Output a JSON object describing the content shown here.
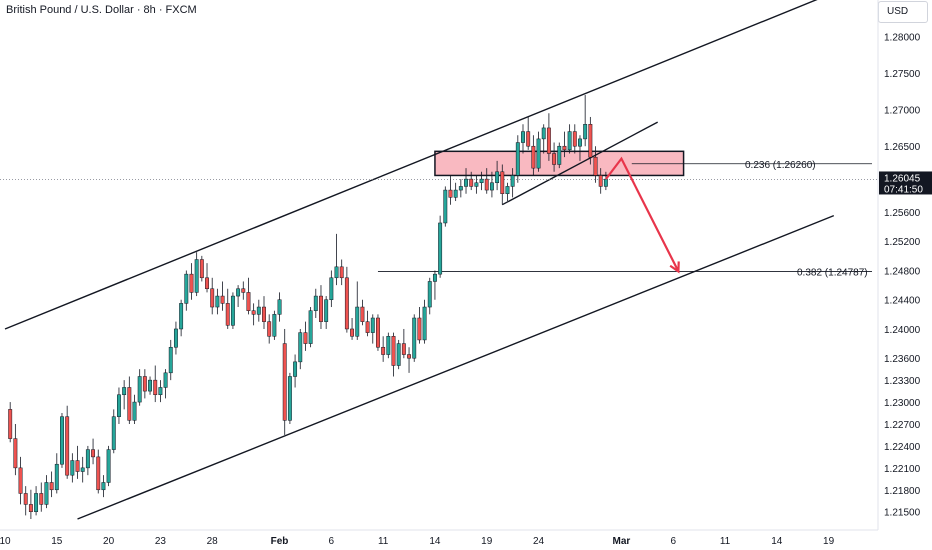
{
  "window": {
    "title": "British Pound / U.S. Dollar · 8h · FXCM"
  },
  "price_axis": {
    "currency_label": "USD"
  },
  "colors": {
    "up": "#26a69a",
    "down": "#ef5350",
    "zone_fill": "#f7a1ac",
    "arrow": "#e8354b",
    "last_price_bg": "#131722"
  },
  "last_price": {
    "value": "1.26045",
    "countdown": "07:41:50"
  },
  "chart_data": {
    "type": "candlestick",
    "title": "British Pound / U.S. Dollar · 8h · FXCM",
    "xlabel": "",
    "ylabel": "",
    "ylim": [
      1.2125,
      1.285
    ],
    "y_ticks": [
      "1.28000",
      "1.27500",
      "1.27000",
      "1.26500",
      "1.26000",
      "1.25600",
      "1.25200",
      "1.24800",
      "1.24400",
      "1.24000",
      "1.23600",
      "1.23300",
      "1.23000",
      "1.22700",
      "1.22400",
      "1.22100",
      "1.21800",
      "1.21500"
    ],
    "x_tick_labels": [
      {
        "label": "10",
        "index": 0
      },
      {
        "label": "15",
        "index": 10
      },
      {
        "label": "20",
        "index": 20
      },
      {
        "label": "23",
        "index": 30
      },
      {
        "label": "28",
        "index": 40
      },
      {
        "label": "Feb",
        "index": 53,
        "bold": true
      },
      {
        "label": "6",
        "index": 63
      },
      {
        "label": "11",
        "index": 73
      },
      {
        "label": "14",
        "index": 83
      },
      {
        "label": "19",
        "index": 93
      },
      {
        "label": "24",
        "index": 103
      },
      {
        "label": "Mar",
        "index": 119,
        "bold": true
      },
      {
        "label": "6",
        "index": 129
      },
      {
        "label": "11",
        "index": 139
      },
      {
        "label": "14",
        "index": 149
      },
      {
        "label": "19",
        "index": 159
      }
    ],
    "index_range": [
      1,
      160
    ],
    "candles": [
      [
        1.229,
        1.23,
        1.2245,
        1.225
      ],
      [
        1.225,
        1.227,
        1.22,
        1.221
      ],
      [
        1.221,
        1.2225,
        1.216,
        1.2175
      ],
      [
        1.2175,
        1.2185,
        1.2145,
        1.216
      ],
      [
        1.216,
        1.218,
        1.214,
        1.215
      ],
      [
        1.215,
        1.2185,
        1.2145,
        1.2175
      ],
      [
        1.2175,
        1.219,
        1.215,
        1.216
      ],
      [
        1.216,
        1.22,
        1.2155,
        1.219
      ],
      [
        1.219,
        1.2205,
        1.217,
        1.218
      ],
      [
        1.218,
        1.223,
        1.2175,
        1.2215
      ],
      [
        1.2215,
        1.2285,
        1.221,
        1.228
      ],
      [
        1.228,
        1.2295,
        1.2195,
        1.22
      ],
      [
        1.22,
        1.223,
        1.219,
        1.222
      ],
      [
        1.222,
        1.224,
        1.2195,
        1.2205
      ],
      [
        1.2205,
        1.2225,
        1.219,
        1.221
      ],
      [
        1.221,
        1.224,
        1.22,
        1.2235
      ],
      [
        1.2235,
        1.225,
        1.2215,
        1.2225
      ],
      [
        1.2225,
        1.2235,
        1.2175,
        1.218
      ],
      [
        1.218,
        1.22,
        1.217,
        1.219
      ],
      [
        1.219,
        1.224,
        1.2185,
        1.2235
      ],
      [
        1.2235,
        1.229,
        1.223,
        1.228
      ],
      [
        1.228,
        1.232,
        1.227,
        1.231
      ],
      [
        1.231,
        1.233,
        1.229,
        1.232
      ],
      [
        1.232,
        1.2335,
        1.227,
        1.2275
      ],
      [
        1.2275,
        1.231,
        1.227,
        1.23
      ],
      [
        1.23,
        1.2345,
        1.2295,
        1.2335
      ],
      [
        1.2335,
        1.2345,
        1.2305,
        1.2315
      ],
      [
        1.2315,
        1.2335,
        1.231,
        1.233
      ],
      [
        1.233,
        1.235,
        1.23,
        1.231
      ],
      [
        1.231,
        1.233,
        1.23,
        1.232
      ],
      [
        1.232,
        1.2345,
        1.2305,
        1.234
      ],
      [
        1.234,
        1.2385,
        1.233,
        1.2375
      ],
      [
        1.2375,
        1.241,
        1.2365,
        1.24
      ],
      [
        1.24,
        1.244,
        1.239,
        1.2435
      ],
      [
        1.2435,
        1.248,
        1.2425,
        1.2475
      ],
      [
        1.2475,
        1.249,
        1.244,
        1.245
      ],
      [
        1.245,
        1.2505,
        1.2445,
        1.2495
      ],
      [
        1.2495,
        1.25,
        1.2465,
        1.247
      ],
      [
        1.247,
        1.249,
        1.245,
        1.2455
      ],
      [
        1.2455,
        1.247,
        1.242,
        1.243
      ],
      [
        1.243,
        1.2455,
        1.242,
        1.2445
      ],
      [
        1.2445,
        1.2465,
        1.2425,
        1.2435
      ],
      [
        1.2435,
        1.2455,
        1.24,
        1.2405
      ],
      [
        1.2405,
        1.245,
        1.24,
        1.2445
      ],
      [
        1.2445,
        1.246,
        1.243,
        1.2455
      ],
      [
        1.2455,
        1.2465,
        1.244,
        1.245
      ],
      [
        1.245,
        1.247,
        1.242,
        1.2425
      ],
      [
        1.2425,
        1.2435,
        1.2405,
        1.242
      ],
      [
        1.242,
        1.244,
        1.241,
        1.243
      ],
      [
        1.243,
        1.2445,
        1.24,
        1.241
      ],
      [
        1.241,
        1.242,
        1.238,
        1.239
      ],
      [
        1.239,
        1.2425,
        1.2385,
        1.242
      ],
      [
        1.242,
        1.245,
        1.241,
        1.244
      ],
      [
        1.238,
        1.24,
        1.2255,
        1.2275
      ],
      [
        1.2275,
        1.234,
        1.227,
        1.2335
      ],
      [
        1.2335,
        1.2365,
        1.232,
        1.2355
      ],
      [
        1.2355,
        1.24,
        1.2345,
        1.2395
      ],
      [
        1.2395,
        1.241,
        1.237,
        1.238
      ],
      [
        1.238,
        1.243,
        1.2375,
        1.2425
      ],
      [
        1.2425,
        1.2455,
        1.2415,
        1.2445
      ],
      [
        1.2445,
        1.246,
        1.24,
        1.241
      ],
      [
        1.241,
        1.2445,
        1.24,
        1.244
      ],
      [
        1.244,
        1.248,
        1.243,
        1.247
      ],
      [
        1.247,
        1.253,
        1.246,
        1.2485
      ],
      [
        1.2485,
        1.2495,
        1.246,
        1.247
      ],
      [
        1.247,
        1.2485,
        1.2395,
        1.24
      ],
      [
        1.24,
        1.2415,
        1.2385,
        1.239
      ],
      [
        1.239,
        1.2465,
        1.2385,
        1.243
      ],
      [
        1.243,
        1.244,
        1.2405,
        1.241
      ],
      [
        1.241,
        1.2425,
        1.239,
        1.2395
      ],
      [
        1.2395,
        1.242,
        1.238,
        1.2415
      ],
      [
        1.2415,
        1.242,
        1.237,
        1.2375
      ],
      [
        1.2375,
        1.239,
        1.2355,
        1.2365
      ],
      [
        1.2365,
        1.2395,
        1.236,
        1.239
      ],
      [
        1.239,
        1.2395,
        1.2335,
        1.235
      ],
      [
        1.235,
        1.2385,
        1.2345,
        1.238
      ],
      [
        1.238,
        1.24,
        1.236,
        1.2365
      ],
      [
        1.2365,
        1.2375,
        1.234,
        1.236
      ],
      [
        1.236,
        1.242,
        1.2355,
        1.2415
      ],
      [
        1.2415,
        1.243,
        1.238,
        1.2385
      ],
      [
        1.2385,
        1.244,
        1.238,
        1.243
      ],
      [
        1.243,
        1.247,
        1.242,
        1.2465
      ],
      [
        1.2465,
        1.248,
        1.244,
        1.2475
      ],
      [
        1.2475,
        1.2555,
        1.247,
        1.2545
      ],
      [
        1.2545,
        1.2595,
        1.254,
        1.259
      ],
      [
        1.259,
        1.261,
        1.257,
        1.258
      ],
      [
        1.258,
        1.26,
        1.2575,
        1.259
      ],
      [
        1.259,
        1.2605,
        1.258,
        1.2595
      ],
      [
        1.2595,
        1.262,
        1.2585,
        1.2605
      ],
      [
        1.2605,
        1.2615,
        1.259,
        1.2595
      ],
      [
        1.2595,
        1.261,
        1.2585,
        1.26
      ],
      [
        1.26,
        1.2615,
        1.259,
        1.2605
      ],
      [
        1.2605,
        1.262,
        1.2585,
        1.259
      ],
      [
        1.259,
        1.2615,
        1.258,
        1.26
      ],
      [
        1.26,
        1.263,
        1.259,
        1.2615
      ],
      [
        1.2615,
        1.2625,
        1.257,
        1.2585
      ],
      [
        1.2585,
        1.26,
        1.2575,
        1.2595
      ],
      [
        1.2595,
        1.262,
        1.258,
        1.261
      ],
      [
        1.261,
        1.2665,
        1.26,
        1.2655
      ],
      [
        1.2655,
        1.268,
        1.264,
        1.267
      ],
      [
        1.267,
        1.269,
        1.2645,
        1.265
      ],
      [
        1.265,
        1.2665,
        1.261,
        1.262
      ],
      [
        1.262,
        1.267,
        1.2615,
        1.266
      ],
      [
        1.266,
        1.268,
        1.264,
        1.2675
      ],
      [
        1.2675,
        1.2695,
        1.263,
        1.264
      ],
      [
        1.264,
        1.2655,
        1.2615,
        1.2625
      ],
      [
        1.2625,
        1.2655,
        1.262,
        1.265
      ],
      [
        1.265,
        1.267,
        1.2635,
        1.2645
      ],
      [
        1.2645,
        1.268,
        1.264,
        1.267
      ],
      [
        1.267,
        1.268,
        1.264,
        1.265
      ],
      [
        1.265,
        1.2665,
        1.263,
        1.266
      ],
      [
        1.266,
        1.272,
        1.265,
        1.268
      ],
      [
        1.268,
        1.269,
        1.2625,
        1.2635
      ],
      [
        1.2635,
        1.265,
        1.26,
        1.261
      ],
      [
        1.261,
        1.262,
        1.2585,
        1.2595
      ],
      [
        1.2595,
        1.2615,
        1.259,
        1.2605
      ]
    ],
    "annotations": {
      "zone": {
        "price_top": 1.2643,
        "price_bottom": 1.261,
        "from_index": 83,
        "to_index": 131
      },
      "fib_236": {
        "label": "0.236 (1.26260)",
        "price": 1.2626,
        "from_index": 121
      },
      "fib_382": {
        "label": "0.382 (1.24787)",
        "price": 1.24787,
        "from_index": 72
      },
      "channel_upper": [
        [
          0,
          1.24
        ],
        [
          160,
          1.286
        ]
      ],
      "channel_lower": [
        [
          14,
          1.214
        ],
        [
          160,
          1.2555
        ]
      ],
      "inner_line": [
        [
          96,
          1.257
        ],
        [
          126,
          1.2683
        ]
      ],
      "arrow": [
        [
          116,
          1.2605
        ],
        [
          119,
          1.2633
        ],
        [
          130,
          1.24787
        ]
      ]
    }
  }
}
